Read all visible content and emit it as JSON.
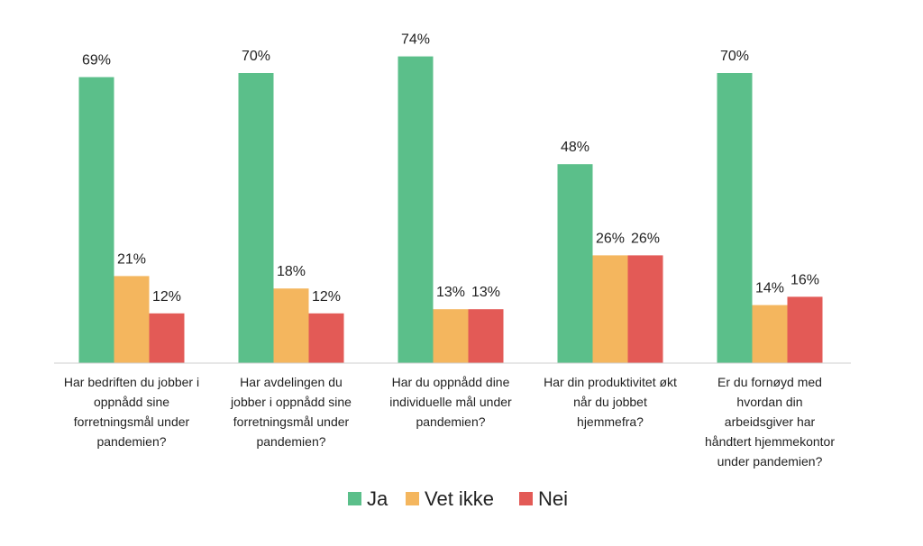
{
  "chart_data": {
    "type": "bar",
    "title": "",
    "xlabel": "",
    "ylabel": "",
    "ylim": [
      0,
      80
    ],
    "grid": false,
    "legend_position": "bottom",
    "unit_suffix": "%",
    "categories": [
      "Har bedriften du jobber i oppnådd sine forretningsmål under pandemien?",
      "Har avdelingen du jobber i oppnådd sine forretningsmål under pandemien?",
      "Har du oppnådd dine individuelle mål under pandemien?",
      "Har din produktivitet økt når du jobbet hjemmefra?",
      "Er du fornøyd med hvordan din arbeidsgiver har håndtert hjemmekontor under pandemien?"
    ],
    "category_lines": [
      [
        "Har bedriften du jobber i",
        "oppnådd sine",
        "forretningsmål under",
        "pandemien?"
      ],
      [
        "Har avdelingen du",
        "jobber i oppnådd sine",
        "forretningsmål under",
        "pandemien?"
      ],
      [
        "Har du oppnådd dine",
        "individuelle mål under",
        "pandemien?"
      ],
      [
        "Har din produktivitet økt",
        "når du jobbet",
        "hjemmefra?"
      ],
      [
        "Er du fornøyd med",
        "hvordan din",
        "arbeidsgiver har",
        "håndtert hjemmekontor",
        "under pandemien?"
      ]
    ],
    "series": [
      {
        "name": "Ja",
        "color": "#5bbf8a",
        "values": [
          69,
          70,
          74,
          48,
          70
        ]
      },
      {
        "name": "Vet ikke",
        "color": "#f4b65e",
        "values": [
          21,
          18,
          13,
          26,
          14
        ]
      },
      {
        "name": "Nei",
        "color": "#e35a56",
        "values": [
          12,
          12,
          13,
          26,
          16
        ]
      }
    ]
  }
}
